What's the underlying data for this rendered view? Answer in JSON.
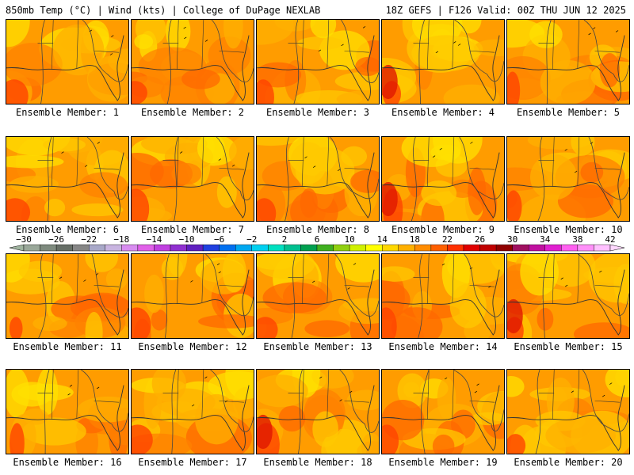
{
  "header": {
    "left": "850mb Temp (°C) | Wind (kts) | College of DuPage NEXLAB",
    "right": "18Z GEFS | F126 Valid: 00Z THU JUN 12 2025"
  },
  "members": [
    "Ensemble Member: 1",
    "Ensemble Member: 2",
    "Ensemble Member: 3",
    "Ensemble Member: 4",
    "Ensemble Member: 5",
    "Ensemble Member: 6",
    "Ensemble Member: 7",
    "Ensemble Member: 8",
    "Ensemble Member: 9",
    "Ensemble Member: 10",
    "Ensemble Member: 11",
    "Ensemble Member: 12",
    "Ensemble Member: 13",
    "Ensemble Member: 14",
    "Ensemble Member: 15",
    "Ensemble Member: 16",
    "Ensemble Member: 17",
    "Ensemble Member: 18",
    "Ensemble Member: 19",
    "Ensemble Member: 20"
  ],
  "colorbar": {
    "labels": [
      "−30",
      "−26",
      "−22",
      "−18",
      "−14",
      "−10",
      "−6",
      "−2",
      "2",
      "6",
      "10",
      "14",
      "18",
      "22",
      "26",
      "30",
      "34",
      "38",
      "42"
    ],
    "colors": [
      "#9aa89a",
      "#7e8a7e",
      "#666e66",
      "#868686",
      "#a8a8c8",
      "#c8b4e0",
      "#d88cf0",
      "#e060e8",
      "#c040e0",
      "#9030d0",
      "#6020c0",
      "#2040e0",
      "#0070f0",
      "#00a8f0",
      "#00d0f0",
      "#00e0c0",
      "#00c090",
      "#00a050",
      "#40b020",
      "#90d010",
      "#d0f000",
      "#ffff00",
      "#ffd800",
      "#ffb000",
      "#ff8c00",
      "#ff6000",
      "#ff3000",
      "#e00000",
      "#c00000",
      "#900000",
      "#a01060",
      "#c010a0",
      "#e020d0",
      "#ff60f0",
      "#ff90f8",
      "#ffc0ff"
    ]
  },
  "field_colors": {
    "t14": "#ffe000",
    "t16": "#ffc800",
    "t18": "#ffb000",
    "t20": "#ff9c00",
    "t22": "#ff8200",
    "t24": "#ff6800",
    "t26": "#ff4400",
    "t28": "#e01800",
    "coast": "#333333",
    "contour": "#444444"
  }
}
